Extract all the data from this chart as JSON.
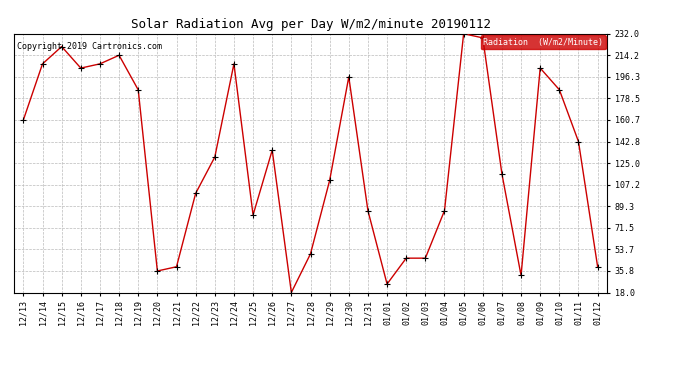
{
  "title": "Solar Radiation Avg per Day W/m2/minute 20190112",
  "copyright": "Copyright 2019 Cartronics.com",
  "legend_label": "Radiation  (W/m2/Minute)",
  "ylim": [
    18.0,
    232.0
  ],
  "yticks": [
    18.0,
    35.8,
    53.7,
    71.5,
    89.3,
    107.2,
    125.0,
    142.8,
    160.7,
    178.5,
    196.3,
    214.2,
    232.0
  ],
  "dates": [
    "12/13",
    "12/14",
    "12/15",
    "12/16",
    "12/17",
    "12/18",
    "12/19",
    "12/20",
    "12/21",
    "12/22",
    "12/23",
    "12/24",
    "12/25",
    "12/26",
    "12/27",
    "12/28",
    "12/29",
    "12/30",
    "12/31",
    "01/01",
    "01/02",
    "01/03",
    "01/04",
    "01/05",
    "01/06",
    "01/07",
    "01/08",
    "01/09",
    "01/10",
    "01/11",
    "01/12"
  ],
  "values": [
    160.7,
    207.1,
    221.4,
    203.6,
    207.1,
    214.2,
    185.6,
    35.8,
    39.3,
    100.0,
    130.0,
    207.1,
    82.1,
    135.7,
    18.0,
    50.0,
    110.7,
    196.3,
    85.7,
    25.0,
    46.4,
    46.4,
    85.7,
    232.0,
    228.6,
    116.1,
    32.1,
    203.6,
    185.7,
    142.8,
    39.3
  ],
  "line_color": "#cc0000",
  "marker_color": "#000000",
  "bg_color": "#ffffff",
  "grid_color": "#bbbbbb",
  "legend_bg": "#cc0000",
  "legend_text": "#ffffff",
  "title_fontsize": 9,
  "tick_fontsize": 6,
  "copyright_fontsize": 6,
  "legend_fontsize": 6
}
